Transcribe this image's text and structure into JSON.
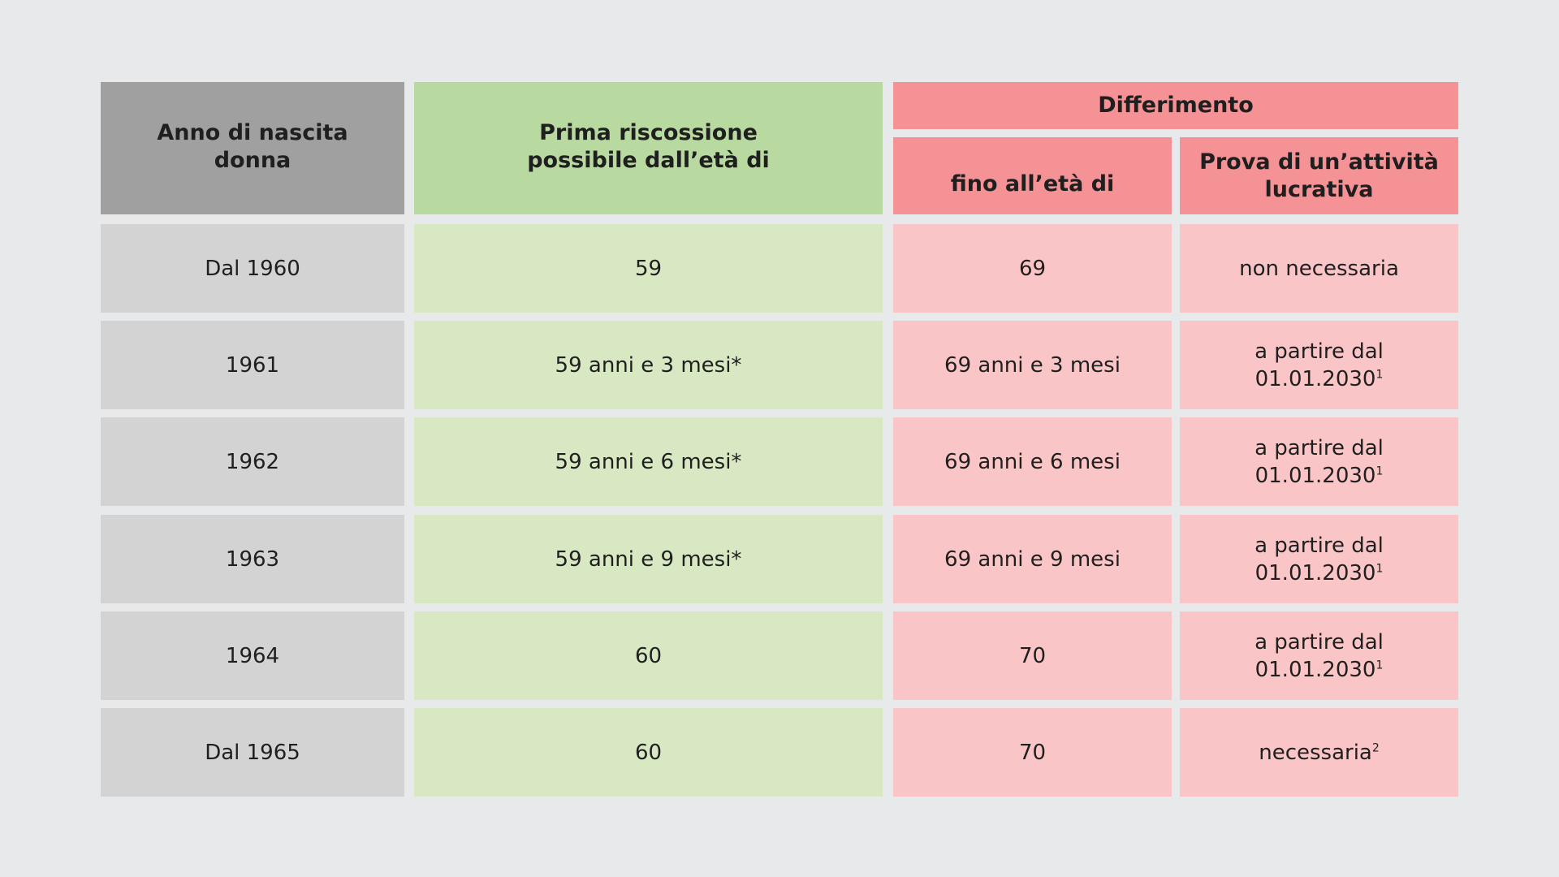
{
  "headers": {
    "birth_year_line1": "Anno di nascita",
    "birth_year_line2": "donna",
    "first_collection_line1": "Prima riscossione",
    "first_collection_line2": "possibile dall’età di",
    "deferral": "Differimento",
    "until_age": "fino all’età di",
    "proof_line1": "Prova di un’attività",
    "proof_line2": "lucrativa"
  },
  "rows": [
    {
      "year": "Dal 1960",
      "first": "59",
      "until": "69",
      "proof_line1": "non necessaria",
      "proof_line2": "",
      "proof_sup": ""
    },
    {
      "year": "1961",
      "first": "59 anni e 3 mesi*",
      "until": "69 anni e 3 mesi",
      "proof_line1": "a partire dal",
      "proof_line2": "01.01.2030",
      "proof_sup": "1"
    },
    {
      "year": "1962",
      "first": "59 anni e 6 mesi*",
      "until": "69 anni e 6 mesi",
      "proof_line1": "a partire dal",
      "proof_line2": "01.01.2030",
      "proof_sup": "1"
    },
    {
      "year": "1963",
      "first": "59 anni e 9 mesi*",
      "until": "69 anni e 9 mesi",
      "proof_line1": "a partire dal",
      "proof_line2": "01.01.2030",
      "proof_sup": "1"
    },
    {
      "year": "1964",
      "first": "60",
      "until": "70",
      "proof_line1": "a partire dal",
      "proof_line2": "01.01.2030",
      "proof_sup": "1"
    },
    {
      "year": "Dal 1965",
      "first": "60",
      "until": "70",
      "proof_line1": "necessaria",
      "proof_line2": "",
      "proof_sup": "2"
    }
  ]
}
